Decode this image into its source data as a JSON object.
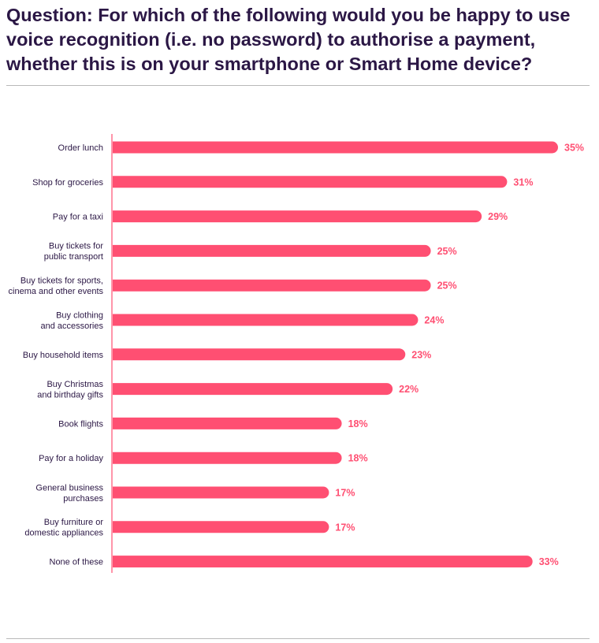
{
  "question": "Question: For which of the following would you be happy to use voice recognition (i.e. no password) to authorise a payment, whether this is on your smartphone or Smart Home device?",
  "colors": {
    "bar": "#ff4f72",
    "title": "#2b1745",
    "axis": "#ff4f72"
  },
  "chart_data": {
    "type": "bar",
    "orientation": "horizontal",
    "value_suffix": "%",
    "categories": [
      [
        "Order lunch"
      ],
      [
        "Shop for groceries"
      ],
      [
        "Pay for a taxi"
      ],
      [
        "Buy tickets for",
        "public transport"
      ],
      [
        "Buy tickets for sports,",
        "cinema and other events"
      ],
      [
        "Buy clothing",
        "and accessories"
      ],
      [
        "Buy household items"
      ],
      [
        "Buy Christmas",
        "and birthday gifts"
      ],
      [
        "Book flights"
      ],
      [
        "Pay for a holiday"
      ],
      [
        "General business",
        "purchases"
      ],
      [
        "Buy furniture or",
        "domestic appliances"
      ],
      [
        "None of these"
      ]
    ],
    "values": [
      35,
      31,
      29,
      25,
      25,
      24,
      23,
      22,
      18,
      18,
      17,
      17,
      33
    ],
    "xlim": [
      0,
      35
    ],
    "grid": false,
    "legend": "none"
  }
}
